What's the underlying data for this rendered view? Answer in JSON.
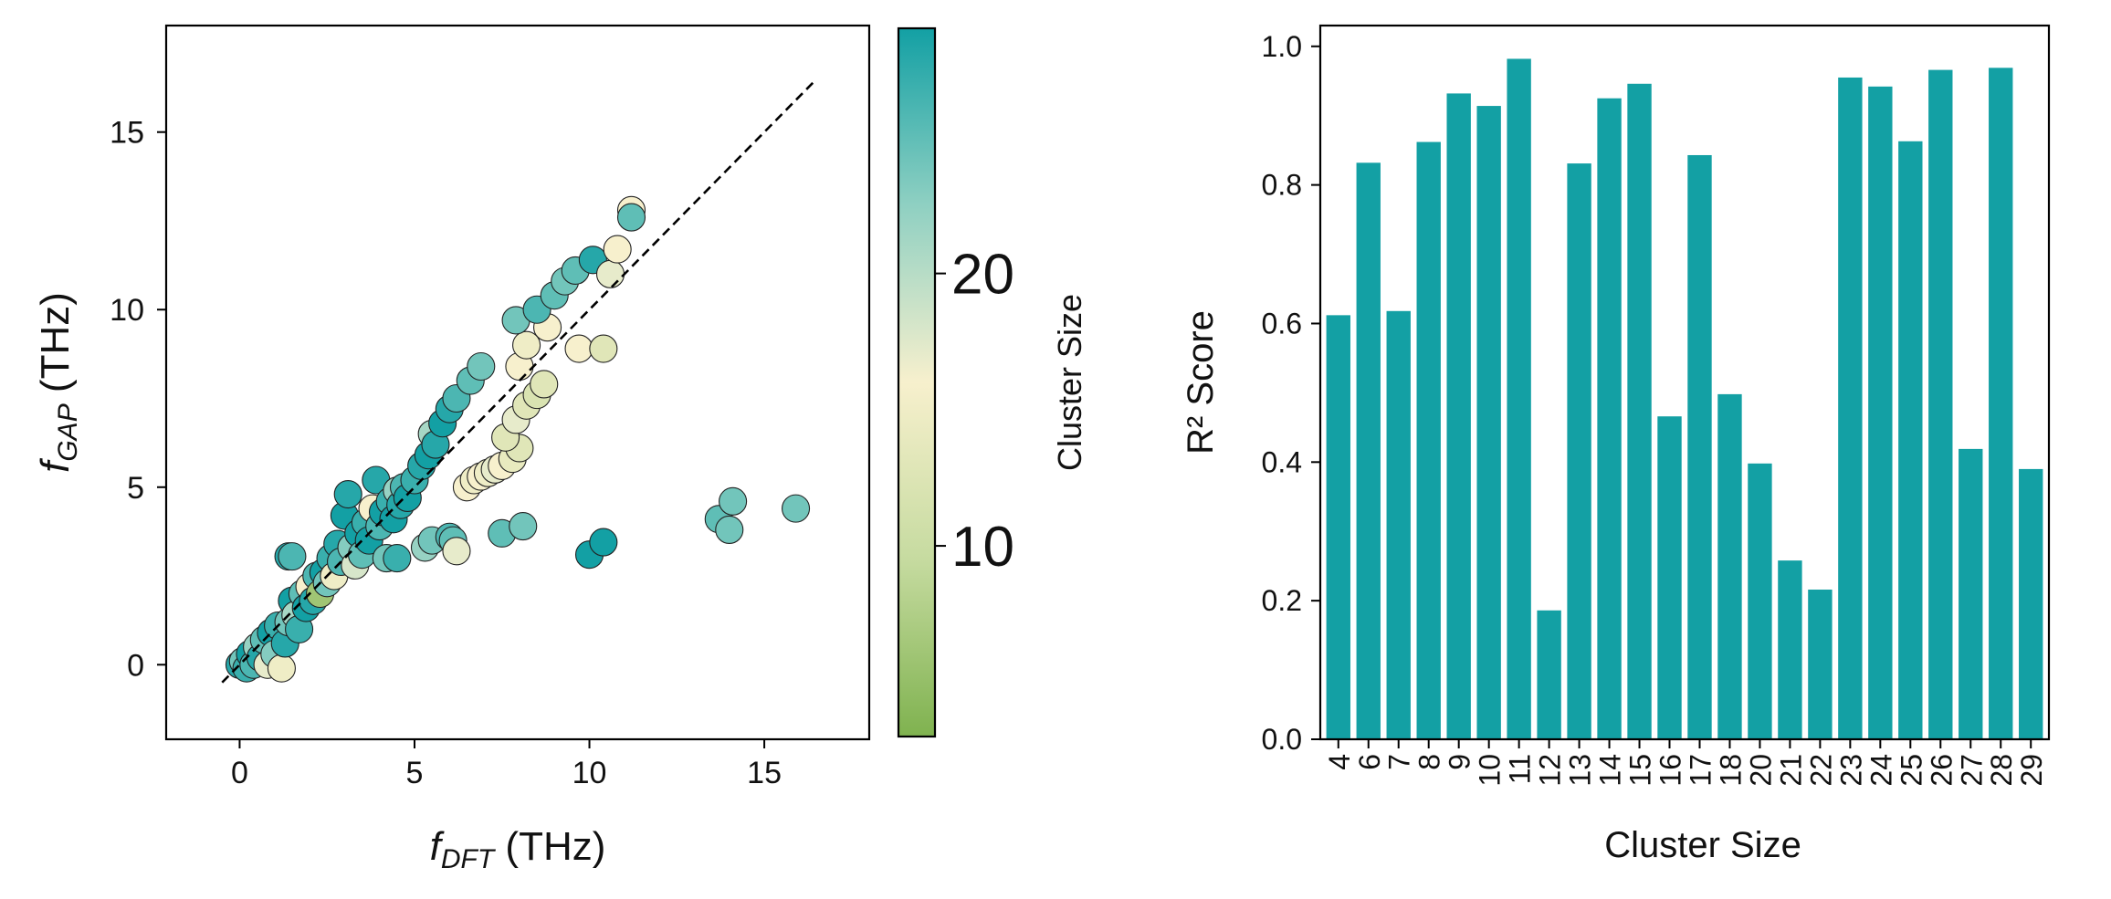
{
  "chart_data": [
    {
      "type": "scatter",
      "title": "",
      "xlabel_var": "f",
      "xlabel_sub": "DFT",
      "xlabel_unit": " (THz)",
      "ylabel_var": "f",
      "ylabel_sub": "GAP",
      "ylabel_unit": " (THz)",
      "xlim": [
        -2.1,
        18.0
      ],
      "ylim": [
        -2.1,
        18.0
      ],
      "xticks": [
        0,
        5,
        10,
        15
      ],
      "yticks": [
        0,
        5,
        10,
        15
      ],
      "reference_line": {
        "x": [
          -0.5,
          16.4
        ],
        "y": [
          -0.5,
          16.4
        ],
        "style": "dashed",
        "color": "#000000"
      },
      "colorbar": {
        "label": "Cluster Size",
        "range": [
          3,
          29
        ],
        "ticks": [
          10,
          20
        ],
        "colors": [
          "#7fb24f",
          "#c6dba0",
          "#f7f0cd",
          "#8fd0c2",
          "#13a0a4"
        ]
      },
      "color_encoding": "cluster_size",
      "points": [
        {
          "x": 0.0,
          "y": 0.0,
          "c": 28
        },
        {
          "x": 0.1,
          "y": 0.1,
          "c": 24
        },
        {
          "x": 0.2,
          "y": -0.1,
          "c": 27
        },
        {
          "x": 0.3,
          "y": 0.3,
          "c": 29
        },
        {
          "x": 0.4,
          "y": 0.0,
          "c": 26
        },
        {
          "x": 0.5,
          "y": 0.5,
          "c": 22
        },
        {
          "x": 0.6,
          "y": 0.2,
          "c": 28
        },
        {
          "x": 0.7,
          "y": 0.7,
          "c": 25
        },
        {
          "x": 0.8,
          "y": 0.0,
          "c": 17
        },
        {
          "x": 0.9,
          "y": 0.9,
          "c": 29
        },
        {
          "x": 1.0,
          "y": 0.3,
          "c": 23
        },
        {
          "x": 1.1,
          "y": 1.1,
          "c": 27
        },
        {
          "x": 1.2,
          "y": -0.1,
          "c": 15
        },
        {
          "x": 1.3,
          "y": 0.6,
          "c": 28
        },
        {
          "x": 1.4,
          "y": 1.2,
          "c": 24
        },
        {
          "x": 1.5,
          "y": 1.8,
          "c": 29
        },
        {
          "x": 1.4,
          "y": 3.05,
          "c": 28
        },
        {
          "x": 1.5,
          "y": 3.05,
          "c": 26
        },
        {
          "x": 1.6,
          "y": 1.4,
          "c": 21
        },
        {
          "x": 1.7,
          "y": 1.0,
          "c": 27
        },
        {
          "x": 1.8,
          "y": 2.0,
          "c": 25
        },
        {
          "x": 1.9,
          "y": 1.6,
          "c": 29
        },
        {
          "x": 2.0,
          "y": 2.2,
          "c": 16
        },
        {
          "x": 2.1,
          "y": 1.8,
          "c": 28
        },
        {
          "x": 2.2,
          "y": 2.5,
          "c": 26
        },
        {
          "x": 2.3,
          "y": 2.0,
          "c": 6
        },
        {
          "x": 2.4,
          "y": 2.6,
          "c": 29
        },
        {
          "x": 2.5,
          "y": 2.3,
          "c": 24
        },
        {
          "x": 2.6,
          "y": 3.0,
          "c": 27
        },
        {
          "x": 2.7,
          "y": 2.5,
          "c": 15
        },
        {
          "x": 2.8,
          "y": 3.4,
          "c": 28
        },
        {
          "x": 2.9,
          "y": 2.9,
          "c": 26
        },
        {
          "x": 3.0,
          "y": 4.2,
          "c": 29
        },
        {
          "x": 3.1,
          "y": 4.8,
          "c": 28
        },
        {
          "x": 3.2,
          "y": 3.3,
          "c": 23
        },
        {
          "x": 3.3,
          "y": 2.8,
          "c": 18
        },
        {
          "x": 3.4,
          "y": 3.7,
          "c": 29
        },
        {
          "x": 3.5,
          "y": 3.1,
          "c": 25
        },
        {
          "x": 3.6,
          "y": 4.0,
          "c": 27
        },
        {
          "x": 3.7,
          "y": 3.5,
          "c": 29
        },
        {
          "x": 3.8,
          "y": 4.4,
          "c": 16
        },
        {
          "x": 3.9,
          "y": 5.2,
          "c": 28
        },
        {
          "x": 4.0,
          "y": 3.9,
          "c": 26
        },
        {
          "x": 4.1,
          "y": 4.3,
          "c": 29
        },
        {
          "x": 4.2,
          "y": 3.0,
          "c": 24
        },
        {
          "x": 4.3,
          "y": 4.6,
          "c": 27
        },
        {
          "x": 4.4,
          "y": 4.1,
          "c": 29
        },
        {
          "x": 4.5,
          "y": 4.9,
          "c": 22
        },
        {
          "x": 4.6,
          "y": 4.5,
          "c": 28
        },
        {
          "x": 4.7,
          "y": 5.0,
          "c": 26
        },
        {
          "x": 4.8,
          "y": 4.7,
          "c": 29
        },
        {
          "x": 5.0,
          "y": 5.2,
          "c": 27
        },
        {
          "x": 5.2,
          "y": 5.6,
          "c": 28
        },
        {
          "x": 5.4,
          "y": 5.9,
          "c": 29
        },
        {
          "x": 5.5,
          "y": 6.5,
          "c": 21
        },
        {
          "x": 5.6,
          "y": 6.2,
          "c": 28
        },
        {
          "x": 5.8,
          "y": 6.8,
          "c": 29
        },
        {
          "x": 6.0,
          "y": 7.2,
          "c": 28
        },
        {
          "x": 6.2,
          "y": 7.5,
          "c": 26
        },
        {
          "x": 4.5,
          "y": 3.0,
          "c": 27
        },
        {
          "x": 5.3,
          "y": 3.3,
          "c": 22
        },
        {
          "x": 5.5,
          "y": 3.5,
          "c": 24
        },
        {
          "x": 6.0,
          "y": 3.6,
          "c": 26
        },
        {
          "x": 6.1,
          "y": 3.5,
          "c": 25
        },
        {
          "x": 6.2,
          "y": 3.2,
          "c": 17
        },
        {
          "x": 6.5,
          "y": 5.0,
          "c": 16
        },
        {
          "x": 6.7,
          "y": 5.2,
          "c": 15
        },
        {
          "x": 6.9,
          "y": 5.3,
          "c": 16
        },
        {
          "x": 7.1,
          "y": 5.4,
          "c": 15
        },
        {
          "x": 7.3,
          "y": 5.5,
          "c": 17
        },
        {
          "x": 7.5,
          "y": 5.6,
          "c": 16
        },
        {
          "x": 7.8,
          "y": 5.8,
          "c": 14
        },
        {
          "x": 8.0,
          "y": 6.1,
          "c": 13
        },
        {
          "x": 7.6,
          "y": 6.4,
          "c": 13
        },
        {
          "x": 7.9,
          "y": 6.9,
          "c": 17
        },
        {
          "x": 8.2,
          "y": 7.3,
          "c": 13
        },
        {
          "x": 8.5,
          "y": 7.6,
          "c": 12
        },
        {
          "x": 8.7,
          "y": 7.9,
          "c": 13
        },
        {
          "x": 6.6,
          "y": 8.0,
          "c": 25
        },
        {
          "x": 6.9,
          "y": 8.4,
          "c": 24
        },
        {
          "x": 8.0,
          "y": 8.4,
          "c": 16
        },
        {
          "x": 8.2,
          "y": 9.0,
          "c": 15
        },
        {
          "x": 8.8,
          "y": 9.5,
          "c": 16
        },
        {
          "x": 7.9,
          "y": 9.7,
          "c": 24
        },
        {
          "x": 8.5,
          "y": 10.0,
          "c": 26
        },
        {
          "x": 9.0,
          "y": 10.4,
          "c": 25
        },
        {
          "x": 9.3,
          "y": 10.8,
          "c": 24
        },
        {
          "x": 9.6,
          "y": 11.1,
          "c": 25
        },
        {
          "x": 10.1,
          "y": 11.4,
          "c": 28
        },
        {
          "x": 10.6,
          "y": 11.0,
          "c": 17
        },
        {
          "x": 10.8,
          "y": 11.7,
          "c": 16
        },
        {
          "x": 9.7,
          "y": 8.9,
          "c": 16
        },
        {
          "x": 10.4,
          "y": 8.9,
          "c": 13
        },
        {
          "x": 11.2,
          "y": 12.8,
          "c": 16
        },
        {
          "x": 11.2,
          "y": 12.6,
          "c": 25
        },
        {
          "x": 7.5,
          "y": 3.7,
          "c": 25
        },
        {
          "x": 8.1,
          "y": 3.9,
          "c": 24
        },
        {
          "x": 10.0,
          "y": 3.1,
          "c": 29
        },
        {
          "x": 10.4,
          "y": 3.45,
          "c": 29
        },
        {
          "x": 13.7,
          "y": 4.1,
          "c": 25
        },
        {
          "x": 14.1,
          "y": 4.6,
          "c": 24
        },
        {
          "x": 14.0,
          "y": 3.8,
          "c": 24
        },
        {
          "x": 15.9,
          "y": 4.4,
          "c": 24
        }
      ]
    },
    {
      "type": "bar",
      "title": "",
      "xlabel": "Cluster Size",
      "ylabel": "R² Score",
      "ylim": [
        0.0,
        1.03
      ],
      "yticks": [
        "0.0",
        "0.2",
        "0.4",
        "0.6",
        "0.8",
        "1.0"
      ],
      "bar_color": "#13a0a4",
      "categories": [
        "4",
        "6",
        "7",
        "8",
        "9",
        "10",
        "11",
        "12",
        "13",
        "14",
        "15",
        "16",
        "17",
        "18",
        "20",
        "21",
        "22",
        "23",
        "24",
        "25",
        "26",
        "27",
        "28",
        "29"
      ],
      "values": [
        0.612,
        0.832,
        0.618,
        0.862,
        0.932,
        0.914,
        0.982,
        0.186,
        0.831,
        0.925,
        0.946,
        0.466,
        0.843,
        0.498,
        0.398,
        0.258,
        0.216,
        0.955,
        0.942,
        0.863,
        0.966,
        0.419,
        0.969,
        0.39
      ]
    }
  ]
}
